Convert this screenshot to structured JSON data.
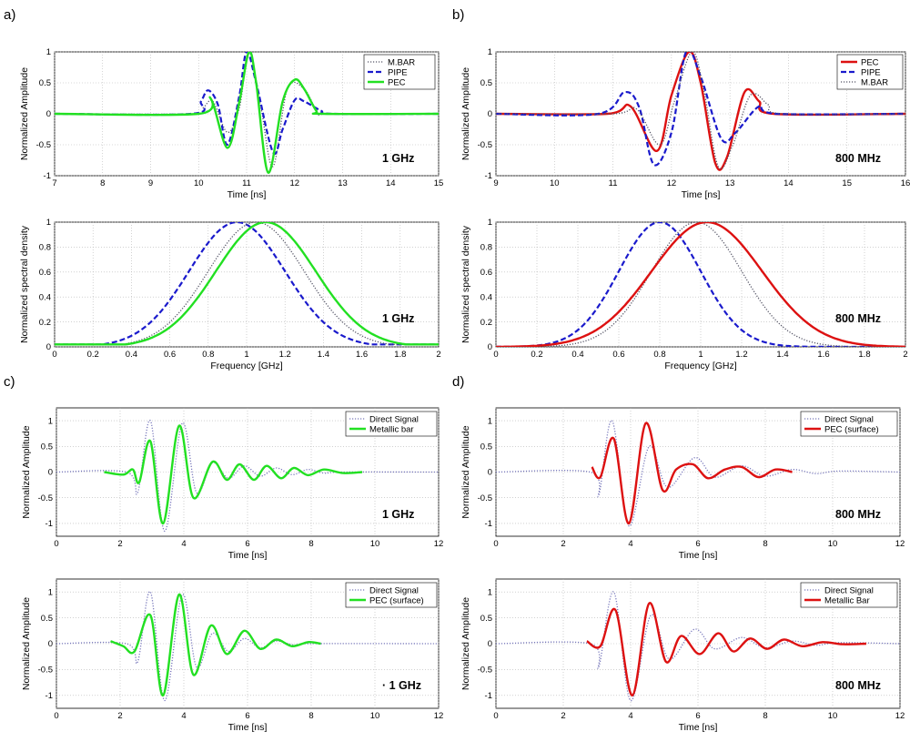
{
  "panels": [
    {
      "label": "a)"
    },
    {
      "label": "b)"
    },
    {
      "label": "c)"
    },
    {
      "label": "d)"
    }
  ],
  "colors": {
    "green": "#22e022",
    "red": "#dd1111",
    "blue": "#1a1acc",
    "dotted": "#555566",
    "direct": "#7777bb"
  },
  "chart_data": [
    {
      "id": "a-top",
      "type": "line",
      "xlabel": "Time [ns]",
      "ylabel": "Normalized Amplitude",
      "xlim": [
        7,
        15
      ],
      "ylim": [
        -1,
        1
      ],
      "xticks": [
        7,
        8,
        9,
        10,
        11,
        12,
        13,
        14,
        15
      ],
      "yticks": [
        -1,
        -0.5,
        0,
        0.5,
        1
      ],
      "ytick_labels": [
        "-1",
        "-0.5",
        "0",
        "0.5",
        "1"
      ],
      "annotation": "1 GHz",
      "legend": [
        "M.BAR",
        "PIPE",
        "PEC"
      ],
      "series": [
        {
          "name": "M.BAR",
          "style": "dotted",
          "color": "#555566",
          "x": [
            7.0,
            9.9,
            10.1,
            10.3,
            10.6,
            10.85,
            11.05,
            11.3,
            11.55,
            11.85,
            12.2,
            12.5,
            12.75,
            15.0
          ],
          "y": [
            0,
            0,
            0.1,
            0.2,
            -0.3,
            0.1,
            1.0,
            0.1,
            -0.85,
            0.4,
            0.4,
            0,
            0,
            0
          ]
        },
        {
          "name": "PIPE",
          "style": "dashed",
          "color": "#1a1acc",
          "x": [
            7.0,
            9.85,
            10.05,
            10.2,
            10.4,
            10.6,
            10.85,
            11.0,
            11.2,
            11.55,
            11.75,
            12.0,
            12.2,
            12.55,
            12.8,
            15.0
          ],
          "y": [
            0,
            0,
            0.2,
            0.38,
            0.15,
            -0.5,
            0.3,
            1.0,
            0.5,
            -0.62,
            -0.25,
            0.22,
            0.2,
            0.05,
            0,
            0
          ]
        },
        {
          "name": "PEC",
          "style": "solid",
          "color": "#22e022",
          "x": [
            7.0,
            10.0,
            10.25,
            10.6,
            10.85,
            11.05,
            11.2,
            11.45,
            11.75,
            12.0,
            12.2,
            12.45,
            12.6,
            15.0
          ],
          "y": [
            0,
            0,
            0.25,
            -0.55,
            0.2,
            1.0,
            0.5,
            -0.95,
            0.2,
            0.55,
            0.4,
            0.05,
            0,
            0
          ]
        }
      ]
    },
    {
      "id": "b-top",
      "type": "line",
      "xlabel": "Time [ns]",
      "ylabel": "Normalized Amplitude",
      "xlim": [
        9,
        16
      ],
      "ylim": [
        -1,
        1
      ],
      "xticks": [
        9,
        10,
        11,
        12,
        13,
        14,
        15,
        16
      ],
      "yticks": [
        -1,
        -0.5,
        0,
        0.5,
        1
      ],
      "ytick_labels": [
        "-1",
        "-0.5",
        "0",
        "0.5",
        "1"
      ],
      "annotation": "800 MHz",
      "legend": [
        "PEC",
        "PIPE",
        "M.BAR"
      ],
      "series": [
        {
          "name": "PEC",
          "style": "solid",
          "color": "#dd1111",
          "x": [
            9.0,
            10.9,
            11.3,
            11.75,
            12.0,
            12.3,
            12.5,
            12.75,
            12.95,
            13.25,
            13.5,
            13.75,
            16.0
          ],
          "y": [
            0,
            0,
            0.12,
            -0.6,
            0.3,
            1.0,
            0.5,
            -0.8,
            -0.7,
            0.35,
            0.2,
            0,
            0
          ]
        },
        {
          "name": "PIPE",
          "style": "dashed",
          "color": "#1a1acc",
          "x": [
            9.0,
            10.75,
            11.2,
            11.45,
            11.7,
            12.0,
            12.25,
            12.5,
            12.85,
            13.1,
            13.5,
            13.8,
            16.0
          ],
          "y": [
            0,
            0,
            0.35,
            0.1,
            -0.82,
            -0.3,
            1.0,
            0.6,
            -0.4,
            -0.3,
            0.12,
            0,
            0
          ]
        },
        {
          "name": "M.BAR",
          "style": "dotted",
          "color": "#555566",
          "x": [
            9.0,
            11.0,
            11.4,
            11.8,
            12.05,
            12.35,
            12.55,
            12.8,
            13.05,
            13.35,
            13.65,
            13.9,
            16.0
          ],
          "y": [
            0,
            0,
            0.08,
            -0.5,
            0.2,
            1.0,
            0.4,
            -0.85,
            -0.5,
            0.3,
            0.15,
            0,
            0
          ]
        }
      ]
    },
    {
      "id": "a-bottom",
      "type": "line",
      "xlabel": "Frequency [GHz]",
      "ylabel": "Normalized spectral density",
      "xlim": [
        0,
        2
      ],
      "ylim": [
        0,
        1
      ],
      "xticks": [
        0,
        0.2,
        0.4,
        0.6,
        0.8,
        1,
        1.2,
        1.4,
        1.6,
        1.8,
        2
      ],
      "yticks": [
        0,
        0.2,
        0.4,
        0.6,
        0.8,
        1
      ],
      "ytick_labels": [
        "0",
        "0.2",
        "0.4",
        "0.6",
        "0.8",
        "1"
      ],
      "annotation": "1 GHz",
      "series": [
        {
          "name": "PIPE",
          "style": "dashed",
          "color": "#1a1acc",
          "gauss": {
            "mu": 0.95,
            "sigma": 0.25,
            "floor": 0.02
          }
        },
        {
          "name": "M.BAR",
          "style": "dotted",
          "color": "#555566",
          "gauss": {
            "mu": 1.05,
            "sigma": 0.25,
            "floor": 0.02
          }
        },
        {
          "name": "PEC",
          "style": "solid",
          "color": "#22e022",
          "gauss": {
            "mu": 1.1,
            "sigma": 0.26,
            "floor": 0.02
          }
        }
      ]
    },
    {
      "id": "b-bottom",
      "type": "line",
      "xlabel": "Frequency [GHz]",
      "ylabel": "Normalized spectral density",
      "xlim": [
        0,
        2
      ],
      "ylim": [
        0,
        1
      ],
      "xticks": [
        0,
        0.2,
        0.4,
        0.6,
        0.8,
        1,
        1.2,
        1.4,
        1.6,
        1.8,
        2
      ],
      "yticks": [
        0,
        0.2,
        0.4,
        0.6,
        0.8,
        1
      ],
      "ytick_labels": [
        "0",
        "0.2",
        "0.4",
        "0.6",
        "0.8",
        "1"
      ],
      "annotation": "800 MHz",
      "series": [
        {
          "name": "PIPE",
          "style": "dashed",
          "color": "#1a1acc",
          "gauss": {
            "mu": 0.8,
            "sigma": 0.2,
            "floor": 0
          }
        },
        {
          "name": "M.BAR",
          "style": "dotted",
          "color": "#555566",
          "gauss": {
            "mu": 0.98,
            "sigma": 0.22,
            "floor": 0
          }
        },
        {
          "name": "PEC",
          "style": "solid",
          "color": "#dd1111",
          "gauss": {
            "mu": 1.03,
            "sigma": 0.27,
            "floor": 0
          }
        }
      ]
    },
    {
      "id": "c-top",
      "type": "line",
      "xlabel": "Time [ns]",
      "ylabel": "Normalized Amplitude",
      "xlim": [
        0,
        12
      ],
      "ylim": [
        -1.25,
        1.25
      ],
      "xticks": [
        0,
        2,
        4,
        6,
        8,
        10,
        12
      ],
      "yticks": [
        -1,
        -0.5,
        0,
        0.5,
        1
      ],
      "ytick_labels": [
        "-1",
        "-0.5",
        "0",
        "0.5",
        "1"
      ],
      "annotation": "1 GHz",
      "legend": [
        "Direct Signal",
        "Metallic bar"
      ],
      "series": [
        {
          "name": "Direct Signal",
          "style": "dotted",
          "color": "#7777bb",
          "x": [
            0,
            2.2,
            2.55,
            2.95,
            3.4,
            3.95,
            4.4,
            4.9,
            5.4,
            5.9,
            6.4,
            6.9,
            7.4,
            7.9,
            8.4,
            9.0,
            12.0
          ],
          "y": [
            0,
            0,
            -0.4,
            1.0,
            -1.15,
            0.95,
            -0.4,
            0.18,
            -0.12,
            0.12,
            -0.08,
            0.08,
            -0.05,
            0.05,
            -0.02,
            0,
            0
          ]
        },
        {
          "name": "Metallic bar",
          "style": "solid",
          "color": "#22e022",
          "x": [
            1.5,
            2.1,
            2.4,
            2.6,
            2.95,
            3.35,
            3.85,
            4.3,
            4.9,
            5.35,
            5.75,
            6.2,
            6.6,
            7.05,
            7.45,
            7.9,
            8.4,
            9.0,
            9.6
          ],
          "y": [
            0,
            -0.05,
            0.05,
            -0.2,
            0.6,
            -1.0,
            0.9,
            -0.5,
            0.2,
            -0.15,
            0.15,
            -0.15,
            0.12,
            -0.12,
            0.08,
            -0.06,
            0.05,
            -0.02,
            0
          ]
        }
      ]
    },
    {
      "id": "d-top",
      "type": "line",
      "xlabel": "Time [ns]",
      "ylabel": "Normalized Amplitude",
      "xlim": [
        0,
        12
      ],
      "ylim": [
        -1.25,
        1.25
      ],
      "xticks": [
        0,
        2,
        4,
        6,
        8,
        10,
        12
      ],
      "yticks": [
        -1,
        -0.5,
        0,
        0.5,
        1
      ],
      "ytick_labels": [
        "-1",
        "-0.5",
        "0",
        "0.5",
        "1"
      ],
      "annotation": "800 MHz",
      "legend": [
        "Direct Signal",
        "PEC (surface)"
      ],
      "series": [
        {
          "name": "Direct Signal",
          "style": "dotted",
          "color": "#7777bb",
          "x": [
            0,
            2.8,
            3.05,
            3.45,
            3.95,
            4.55,
            5.1,
            5.9,
            6.5,
            7.3,
            8.0,
            8.8,
            9.5,
            10.2,
            12.0
          ],
          "y": [
            0,
            0,
            -0.45,
            1.0,
            -1.05,
            0.5,
            -0.3,
            0.28,
            -0.1,
            0.12,
            -0.08,
            0.05,
            -0.03,
            0.02,
            0
          ]
        },
        {
          "name": "PEC (surface)",
          "style": "solid",
          "color": "#dd1111",
          "x": [
            2.85,
            3.1,
            3.5,
            3.95,
            4.45,
            4.95,
            5.35,
            5.85,
            6.3,
            6.8,
            7.3,
            7.8,
            8.3,
            8.8
          ],
          "y": [
            0.1,
            -0.1,
            0.65,
            -1.0,
            0.95,
            -0.35,
            0.05,
            0.15,
            -0.12,
            0.05,
            0.1,
            -0.1,
            0.05,
            0
          ]
        }
      ]
    },
    {
      "id": "c-bottom",
      "type": "line",
      "xlabel": "Time [ns]",
      "ylabel": "Normalized Amplitude",
      "xlim": [
        0,
        12
      ],
      "ylim": [
        -1.25,
        1.25
      ],
      "xticks": [
        0,
        2,
        4,
        6,
        8,
        10,
        12
      ],
      "yticks": [
        -1,
        -0.5,
        0,
        0.5,
        1
      ],
      "ytick_labels": [
        "-1",
        "-0.5",
        "0",
        "0.5",
        "1"
      ],
      "annotation": "1 GHz",
      "annotation_prefix": "·",
      "legend": [
        "Direct Signal",
        "PEC (surface)"
      ],
      "series": [
        {
          "name": "Direct Signal",
          "style": "dotted",
          "color": "#7777bb",
          "x": [
            0,
            2.2,
            2.55,
            2.95,
            3.4,
            3.95,
            4.4,
            4.9,
            5.4,
            5.9,
            6.4,
            6.9,
            7.5,
            8.0,
            12.0
          ],
          "y": [
            0,
            0,
            -0.35,
            1.0,
            -1.1,
            0.95,
            -0.45,
            0.2,
            -0.15,
            0.1,
            -0.08,
            0.05,
            -0.03,
            0,
            0
          ]
        },
        {
          "name": "PEC (surface)",
          "style": "solid",
          "color": "#22e022",
          "x": [
            1.7,
            2.1,
            2.45,
            2.95,
            3.35,
            3.85,
            4.3,
            4.85,
            5.35,
            5.9,
            6.4,
            6.9,
            7.4,
            7.9,
            8.3
          ],
          "y": [
            0.05,
            -0.05,
            -0.15,
            0.55,
            -1.0,
            0.95,
            -0.6,
            0.35,
            -0.2,
            0.25,
            -0.1,
            0.08,
            -0.05,
            0.03,
            0
          ]
        }
      ]
    },
    {
      "id": "d-bottom",
      "type": "line",
      "xlabel": "Time [ns]",
      "ylabel": "Normalized Amplitude",
      "xlim": [
        0,
        12
      ],
      "ylim": [
        -1.25,
        1.25
      ],
      "xticks": [
        0,
        2,
        4,
        6,
        8,
        10,
        12
      ],
      "yticks": [
        -1,
        -0.5,
        0,
        0.5,
        1
      ],
      "ytick_labels": [
        "-1",
        "-0.5",
        "0",
        "0.5",
        "1"
      ],
      "annotation": "800 MHz",
      "legend": [
        "Direct Signal",
        "Metallic Bar"
      ],
      "series": [
        {
          "name": "Direct Signal",
          "style": "dotted",
          "color": "#7777bb",
          "x": [
            0,
            2.8,
            3.05,
            3.5,
            4.0,
            4.6,
            5.15,
            5.9,
            6.5,
            7.3,
            8.0,
            8.8,
            9.5,
            10.2,
            12.0
          ],
          "y": [
            0,
            0,
            -0.45,
            1.0,
            -1.1,
            0.55,
            -0.3,
            0.28,
            -0.1,
            0.12,
            -0.08,
            0.05,
            -0.03,
            0.02,
            0
          ]
        },
        {
          "name": "Metallic Bar",
          "style": "solid",
          "color": "#dd1111",
          "x": [
            2.7,
            3.1,
            3.55,
            4.05,
            4.55,
            5.05,
            5.5,
            6.05,
            6.6,
            7.05,
            7.55,
            8.05,
            8.55,
            9.1,
            9.7,
            10.3,
            11.0
          ],
          "y": [
            0.05,
            -0.05,
            0.65,
            -1.0,
            0.78,
            -0.35,
            0.15,
            -0.2,
            0.2,
            -0.15,
            0.1,
            -0.1,
            0.08,
            -0.05,
            0.03,
            -0.01,
            0
          ]
        }
      ]
    }
  ]
}
